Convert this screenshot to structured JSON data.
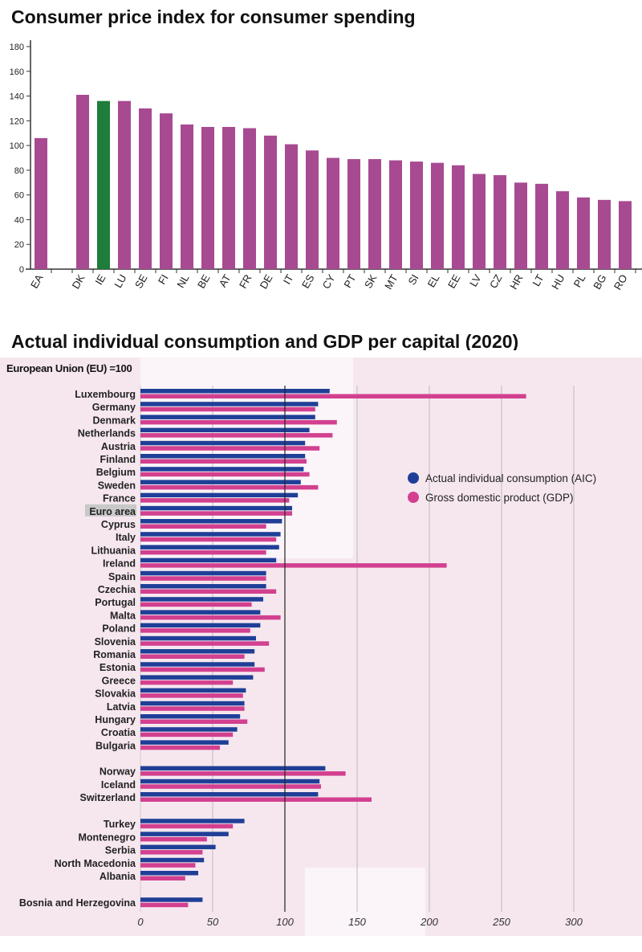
{
  "chart_data": [
    {
      "type": "bar",
      "title": "Consumer price index for consumer spending",
      "categories": [
        "EA",
        "",
        "DK",
        "IE",
        "LU",
        "SE",
        "FI",
        "NL",
        "BE",
        "AT",
        "FR",
        "DE",
        "IT",
        "ES",
        "CY",
        "PT",
        "SK",
        "MT",
        "SI",
        "EL",
        "EE",
        "LV",
        "CZ",
        "HR",
        "LT",
        "HU",
        "PL",
        "BG",
        "RO"
      ],
      "values": [
        106,
        null,
        141,
        136,
        136,
        130,
        126,
        117,
        115,
        115,
        114,
        108,
        101,
        96,
        90,
        89,
        89,
        88,
        87,
        86,
        84,
        77,
        76,
        70,
        69,
        63,
        58,
        56,
        55
      ],
      "highlight": "IE",
      "yticks": [
        0,
        20,
        40,
        60,
        80,
        100,
        120,
        140,
        160,
        180
      ],
      "ylim": [
        0,
        180
      ],
      "colors": {
        "bar": "#a84a92",
        "highlight": "#1e7d3a"
      },
      "grid": false
    },
    {
      "type": "bar",
      "orientation": "horizontal",
      "title": "Actual individual consumption and GDP per capital (2020)",
      "subtitle": "European Union (EU) =100",
      "highlight_category": "Euro area",
      "groups": [
        [
          "Luxembourg",
          "Germany",
          "Denmark",
          "Netherlands",
          "Austria",
          "Finland",
          "Belgium",
          "Sweden",
          "France",
          "Euro area",
          "Cyprus",
          "Italy",
          "Lithuania",
          "Ireland",
          "Spain",
          "Czechia",
          "Portugal",
          "Malta",
          "Poland",
          "Slovenia",
          "Romania",
          "Estonia",
          "Greece",
          "Slovakia",
          "Latvia",
          "Hungary",
          "Croatia",
          "Bulgaria"
        ],
        [
          "Norway",
          "Iceland",
          "Switzerland"
        ],
        [
          "Turkey",
          "Montenegro",
          "Serbia",
          "North Macedonia",
          "Albania"
        ],
        [
          "Bosnia and Herzegovina"
        ]
      ],
      "series": [
        {
          "name": "Actual individual consumption (AIC)",
          "color": "#1f3f97",
          "values": [
            131,
            123,
            121,
            117,
            114,
            114,
            113,
            111,
            109,
            105,
            98,
            97,
            96,
            94,
            87,
            87,
            85,
            83,
            83,
            80,
            79,
            79,
            78,
            73,
            72,
            69,
            67,
            61,
            128,
            124,
            123,
            72,
            61,
            52,
            44,
            40,
            43
          ]
        },
        {
          "name": "Gross domestic product (GDP)",
          "color": "#d2408f",
          "values": [
            267,
            121,
            136,
            133,
            124,
            115,
            117,
            123,
            103,
            105,
            87,
            94,
            87,
            212,
            87,
            94,
            77,
            97,
            76,
            89,
            72,
            86,
            64,
            71,
            72,
            74,
            64,
            55,
            142,
            125,
            160,
            64,
            46,
            43,
            38,
            31,
            33
          ]
        }
      ],
      "xticks": [
        0,
        50,
        100,
        150,
        200,
        250,
        300
      ],
      "xlim": [
        0,
        330
      ],
      "reference_line": 100,
      "legend": "right",
      "grid": true
    }
  ]
}
